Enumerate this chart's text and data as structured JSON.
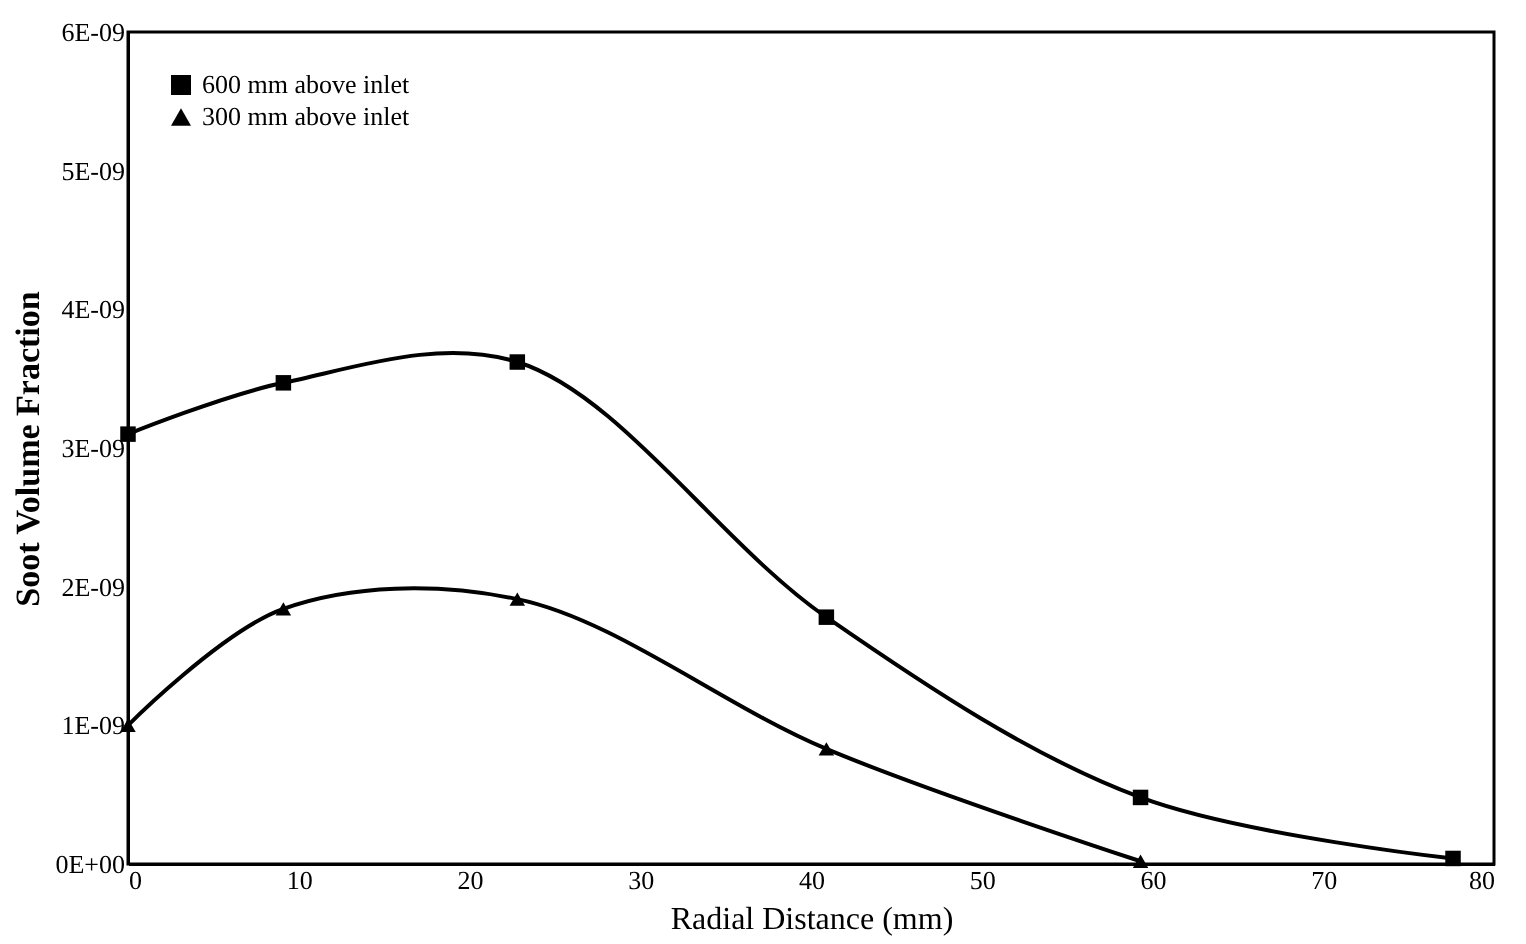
{
  "chart_data": {
    "type": "line",
    "xlabel": "Radial Distance (mm)",
    "ylabel": "Soot Volume Fraction",
    "xlim": [
      0,
      80
    ],
    "xticks": [
      0,
      10,
      20,
      30,
      40,
      50,
      60,
      70,
      80
    ],
    "ylim": [
      0,
      6e-09
    ],
    "yticks": [
      {
        "value": 0,
        "label": "0E+00"
      },
      {
        "value": 1e-09,
        "label": "1E-09"
      },
      {
        "value": 2e-09,
        "label": "2E-09"
      },
      {
        "value": 3e-09,
        "label": "3E-09"
      },
      {
        "value": 4e-09,
        "label": "4E-09"
      },
      {
        "value": 5e-09,
        "label": "5E-09"
      },
      {
        "value": 6e-09,
        "label": "6E-09"
      }
    ],
    "grid": false,
    "legend": "top left",
    "series": [
      {
        "name": "600 mm above inlet",
        "color": "#000000",
        "marker": "square",
        "x": [
          0,
          9.1,
          22.8,
          40.9,
          59.3,
          77.6
        ],
        "values": [
          3.1e-09,
          3.47e-09,
          3.62e-09,
          1.78e-09,
          4.8e-10,
          4e-11
        ]
      },
      {
        "name": "300 mm above inlet",
        "color": "#000000",
        "marker": "triangle",
        "x": [
          0,
          9.1,
          22.8,
          40.9,
          59.3
        ],
        "values": [
          1e-09,
          1.84e-09,
          1.91e-09,
          8.3e-10,
          2e-11
        ]
      }
    ]
  }
}
